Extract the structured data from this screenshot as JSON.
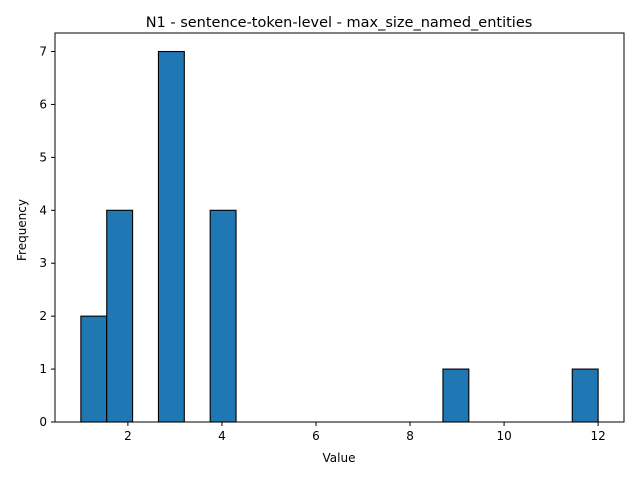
{
  "chart_data": {
    "type": "bar",
    "title": "N1 - sentence-token-level - max_size_named_entities",
    "xlabel": "Value",
    "ylabel": "Frequency",
    "xlim": [
      0.45,
      12.55
    ],
    "ylim": [
      0,
      7.35
    ],
    "x_ticks": [
      "2",
      "4",
      "6",
      "8",
      "10",
      "12"
    ],
    "x_tick_values": [
      2,
      4,
      6,
      8,
      10,
      12
    ],
    "y_ticks": [
      "0",
      "1",
      "2",
      "3",
      "4",
      "5",
      "6",
      "7"
    ],
    "y_tick_values": [
      0,
      1,
      2,
      3,
      4,
      5,
      6,
      7
    ],
    "bin_edges": [
      1.0,
      1.55,
      2.1,
      2.65,
      3.2,
      3.75,
      4.3,
      4.85,
      5.4,
      5.95,
      6.5,
      7.05,
      7.6,
      8.15,
      8.7,
      9.25,
      9.8,
      10.35,
      10.9,
      11.45,
      12.0
    ],
    "values": [
      2,
      4,
      0,
      7,
      0,
      4,
      0,
      0,
      0,
      0,
      0,
      0,
      0,
      0,
      1,
      0,
      0,
      0,
      0,
      1
    ],
    "bar_color": "#1f77b4",
    "edge_color": "#000000",
    "grid": false,
    "legend": false
  }
}
